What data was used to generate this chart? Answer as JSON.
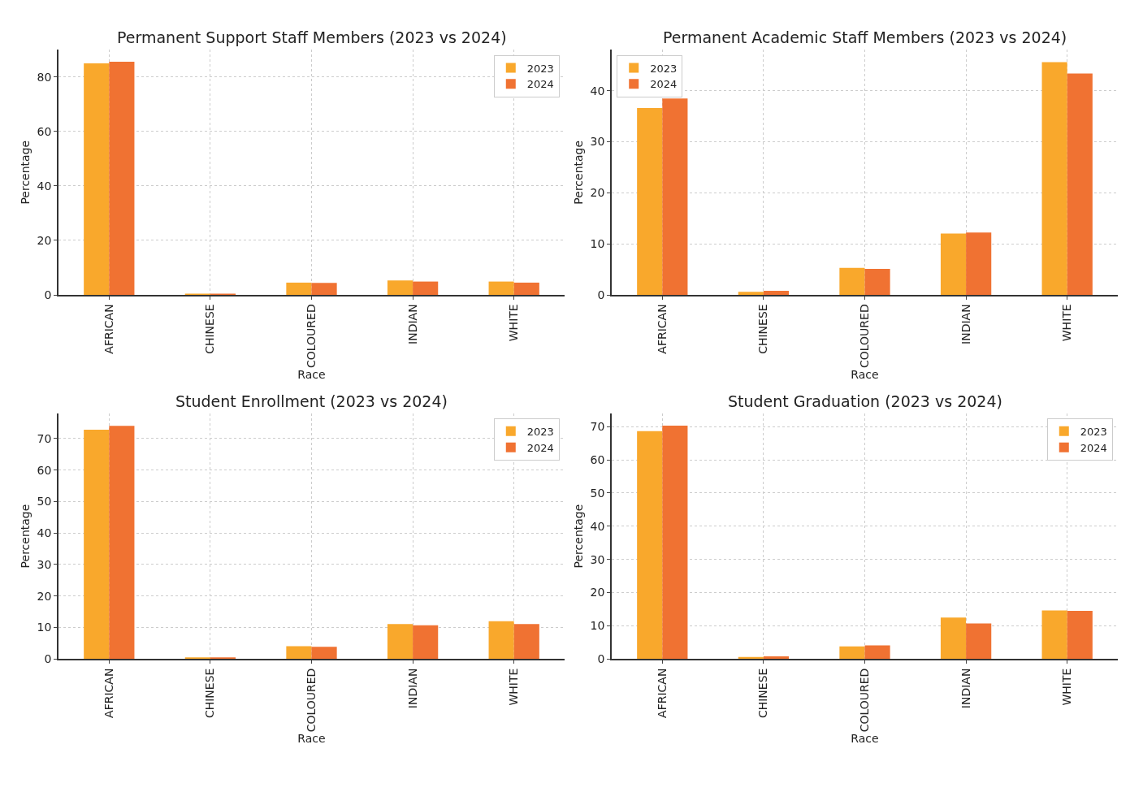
{
  "chart_data": [
    {
      "type": "bar",
      "title": "Permanent Support Staff Members (2023 vs 2024)",
      "xlabel": "Race",
      "ylabel": "Percentage",
      "categories": [
        "AFRICAN",
        "CHINESE",
        "COLOURED",
        "INDIAN",
        "WHITE"
      ],
      "series": [
        {
          "name": "2023",
          "color": "#f9a82c",
          "values": [
            85.1,
            0.3,
            4.5,
            5.3,
            4.9
          ]
        },
        {
          "name": "2024",
          "color": "#f07232",
          "values": [
            85.7,
            0.3,
            4.4,
            4.9,
            4.5
          ]
        }
      ],
      "ylim": [
        0,
        90
      ],
      "yticks": [
        0,
        20,
        40,
        60,
        80
      ],
      "grid": true,
      "legend": "top right"
    },
    {
      "type": "bar",
      "title": "Permanent Academic Staff Members (2023 vs 2024)",
      "xlabel": "Race",
      "ylabel": "Percentage",
      "categories": [
        "AFRICAN",
        "CHINESE",
        "COLOURED",
        "INDIAN",
        "WHITE"
      ],
      "series": [
        {
          "name": "2023",
          "color": "#f9a82c",
          "values": [
            36.6,
            0.6,
            5.3,
            12.0,
            45.6
          ]
        },
        {
          "name": "2024",
          "color": "#f07232",
          "values": [
            38.5,
            0.8,
            5.1,
            12.2,
            43.4
          ]
        }
      ],
      "ylim": [
        0,
        48
      ],
      "yticks": [
        0,
        10,
        20,
        30,
        40
      ],
      "grid": true,
      "legend": "top left"
    },
    {
      "type": "bar",
      "title": "Student Enrollment (2023 vs 2024)",
      "xlabel": "Race",
      "ylabel": "Percentage",
      "categories": [
        "AFRICAN",
        "CHINESE",
        "COLOURED",
        "INDIAN",
        "WHITE"
      ],
      "series": [
        {
          "name": "2023",
          "color": "#f9a82c",
          "values": [
            72.8,
            0.5,
            4.1,
            11.1,
            12.0
          ]
        },
        {
          "name": "2024",
          "color": "#f07232",
          "values": [
            74.0,
            0.5,
            3.9,
            10.7,
            11.1
          ]
        }
      ],
      "ylim": [
        0,
        78
      ],
      "yticks": [
        0,
        10,
        20,
        30,
        40,
        50,
        60,
        70
      ],
      "grid": true,
      "legend": "top right"
    },
    {
      "type": "bar",
      "title": "Student Graduation (2023 vs 2024)",
      "xlabel": "Race",
      "ylabel": "Percentage",
      "categories": [
        "AFRICAN",
        "CHINESE",
        "COLOURED",
        "INDIAN",
        "WHITE"
      ],
      "series": [
        {
          "name": "2023",
          "color": "#f9a82c",
          "values": [
            68.6,
            0.6,
            3.8,
            12.5,
            14.6
          ]
        },
        {
          "name": "2024",
          "color": "#f07232",
          "values": [
            70.3,
            0.8,
            4.1,
            10.7,
            14.5
          ]
        }
      ],
      "ylim": [
        0,
        74
      ],
      "yticks": [
        0,
        10,
        20,
        30,
        40,
        50,
        60,
        70
      ],
      "grid": true,
      "legend": "top right"
    }
  ]
}
